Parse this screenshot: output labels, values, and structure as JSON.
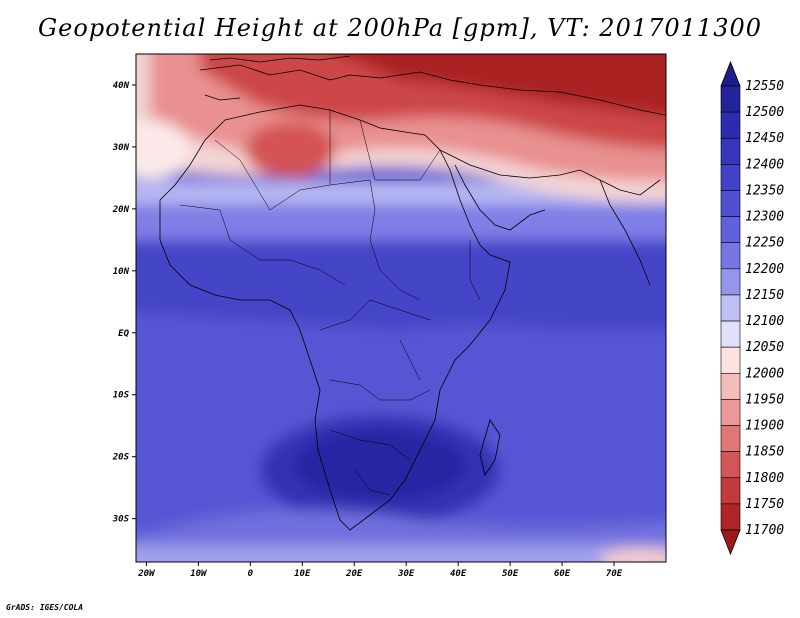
{
  "title": "Geopotential Height at 200hPa [gpm], VT: 2017011300",
  "credit": "GrADS: IGES/COLA",
  "map": {
    "projection": "latlon",
    "lon_range": [
      -22,
      80
    ],
    "lat_range": [
      -37,
      45
    ],
    "x_ticks": [
      {
        "lon": -20,
        "label": "20W"
      },
      {
        "lon": -10,
        "label": "10W"
      },
      {
        "lon": 0,
        "label": "0"
      },
      {
        "lon": 10,
        "label": "10E"
      },
      {
        "lon": 20,
        "label": "20E"
      },
      {
        "lon": 30,
        "label": "30E"
      },
      {
        "lon": 40,
        "label": "40E"
      },
      {
        "lon": 50,
        "label": "50E"
      },
      {
        "lon": 60,
        "label": "60E"
      },
      {
        "lon": 70,
        "label": "70E"
      }
    ],
    "y_ticks": [
      {
        "lat": 40,
        "label": "40N"
      },
      {
        "lat": 30,
        "label": "30N"
      },
      {
        "lat": 20,
        "label": "20N"
      },
      {
        "lat": 10,
        "label": "10N"
      },
      {
        "lat": 0,
        "label": "EQ"
      },
      {
        "lat": -10,
        "label": "10S"
      },
      {
        "lat": -20,
        "label": "20S"
      },
      {
        "lat": -30,
        "label": "30S"
      }
    ]
  },
  "chart_data": {
    "type": "heatmap",
    "title": "Geopotential Height at 200hPa [gpm], VT: 2017011300",
    "variable": "Geopotential Height at 200hPa",
    "units": "gpm",
    "valid_time": "2017011300",
    "lon_range": [
      -22,
      80
    ],
    "lat_range": [
      -37,
      45
    ],
    "colorbar": {
      "levels": [
        12550,
        12500,
        12450,
        12400,
        12350,
        12300,
        12250,
        12200,
        12150,
        12100,
        12050,
        12000,
        11950,
        11900,
        11850,
        11800,
        11750,
        11700
      ],
      "colors": [
        "#1c1c8c",
        "#23239e",
        "#2c2cb0",
        "#3535be",
        "#4242c8",
        "#5050d2",
        "#6161dc",
        "#7777e4",
        "#9595ec",
        "#c0c0f4",
        "#e0e0fa",
        "#fde2e2",
        "#f6bcbc",
        "#ec9898",
        "#e07676",
        "#d35656",
        "#c23a3a",
        "#b02626",
        "#9e1818"
      ]
    },
    "regions": [
      {
        "name": "europe-middle-east-high",
        "lon": [
          5,
          70
        ],
        "lat": [
          34,
          45
        ],
        "approx_value": 11750
      },
      {
        "name": "sahara-ridge-minimum",
        "lon": [
          0,
          15
        ],
        "lat": [
          24,
          34
        ],
        "approx_value": 11900
      },
      {
        "name": "tropical-africa",
        "lon": [
          -20,
          80
        ],
        "lat": [
          -15,
          15
        ],
        "approx_value": 12400
      },
      {
        "name": "southern-africa-maximum",
        "lon": [
          15,
          45
        ],
        "lat": [
          -30,
          -15
        ],
        "approx_value": 12500
      }
    ]
  }
}
